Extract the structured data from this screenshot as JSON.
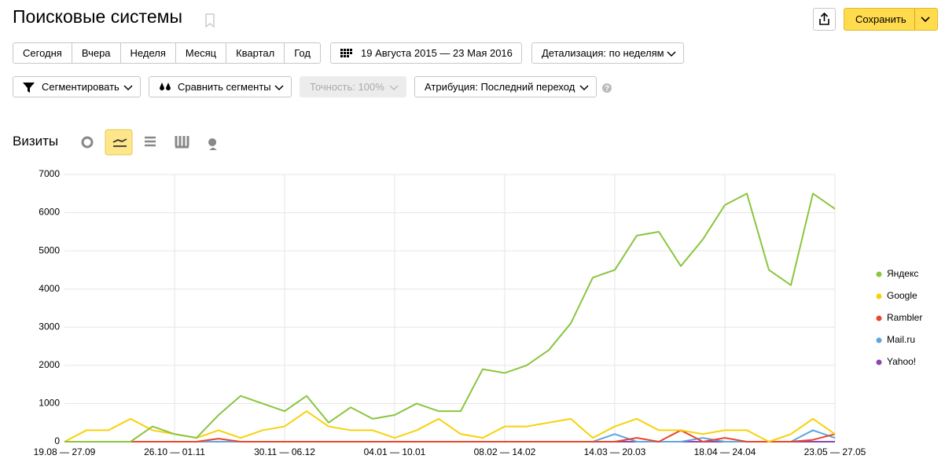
{
  "header": {
    "title": "Поисковые системы",
    "save": "Сохранить"
  },
  "toolbar": {
    "periods": [
      "Сегодня",
      "Вчера",
      "Неделя",
      "Месяц",
      "Квартал",
      "Год"
    ],
    "date_range": "19 Августа 2015 — 23 Мая 2016",
    "detail": "Детализация: по неделям"
  },
  "filters": {
    "segment": "Сегментировать",
    "compare": "Сравнить сегменты",
    "accuracy": "Точность: 100%",
    "attribution": "Атрибуция: Последний переход"
  },
  "chart_data": {
    "type": "line",
    "title": "Визиты",
    "categories": [
      "19.08 — 27.09",
      null,
      null,
      null,
      null,
      "26.10 — 01.11",
      null,
      null,
      null,
      null,
      "30.11 — 06.12",
      null,
      null,
      null,
      null,
      "04.01 — 10.01",
      null,
      null,
      null,
      null,
      "08.02 — 14.02",
      null,
      null,
      null,
      null,
      "14.03 — 20.03",
      null,
      null,
      null,
      null,
      "18.04 — 24.04",
      null,
      null,
      null,
      null,
      "23.05 — 27.05"
    ],
    "series": [
      {
        "name": "Яндекс",
        "color": "#8bc53f",
        "values": [
          0,
          0,
          0,
          0,
          400,
          200,
          100,
          700,
          1200,
          1000,
          800,
          1200,
          500,
          900,
          600,
          700,
          1000,
          800,
          800,
          1900,
          1800,
          2000,
          2400,
          3100,
          4300,
          4500,
          5400,
          5500,
          4600,
          5300,
          6200,
          6500,
          4500,
          4100,
          6500,
          6100
        ]
      },
      {
        "name": "Google",
        "color": "#f8d10a",
        "values": [
          0,
          300,
          300,
          600,
          300,
          200,
          100,
          300,
          100,
          300,
          400,
          800,
          400,
          300,
          300,
          100,
          300,
          600,
          200,
          100,
          400,
          400,
          500,
          600,
          100,
          400,
          600,
          300,
          300,
          200,
          300,
          300,
          0,
          200,
          600,
          200
        ]
      },
      {
        "name": "Rambler",
        "color": "#e8472b",
        "values": [
          0,
          0,
          0,
          0,
          0,
          0,
          0,
          80,
          0,
          0,
          0,
          0,
          0,
          0,
          0,
          0,
          0,
          0,
          0,
          0,
          0,
          0,
          0,
          0,
          0,
          0,
          100,
          0,
          300,
          0,
          100,
          0,
          0,
          0,
          50,
          200
        ]
      },
      {
        "name": "Mail.ru",
        "color": "#5ea6df",
        "values": [
          0,
          0,
          0,
          0,
          0,
          0,
          0,
          0,
          0,
          0,
          0,
          0,
          0,
          0,
          0,
          0,
          0,
          0,
          0,
          0,
          0,
          0,
          0,
          0,
          0,
          200,
          0,
          0,
          0,
          100,
          0,
          0,
          0,
          0,
          300,
          100
        ]
      },
      {
        "name": "Yahoo!",
        "color": "#8e44ad",
        "values": [
          0,
          0,
          0,
          0,
          0,
          0,
          0,
          0,
          0,
          0,
          0,
          0,
          0,
          0,
          0,
          0,
          0,
          0,
          0,
          0,
          0,
          0,
          0,
          0,
          0,
          0,
          0,
          0,
          0,
          0,
          0,
          0,
          0,
          0,
          0,
          0
        ]
      }
    ],
    "ylim": [
      0,
      7000
    ],
    "yticks": [
      0,
      1000,
      2000,
      3000,
      4000,
      5000,
      6000,
      7000
    ],
    "grid": true
  }
}
